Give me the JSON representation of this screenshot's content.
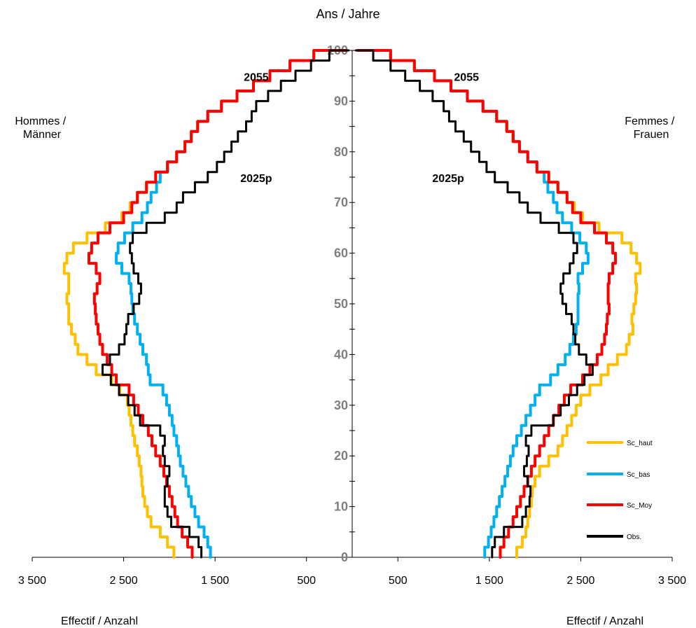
{
  "chart_data": {
    "type": "line",
    "title": "Ans / Jahre",
    "left_label": [
      "Hommes /",
      "Männer"
    ],
    "right_label": [
      "Femmes /",
      "Frauen"
    ],
    "x_label_left": "Effectif /  Anzahl",
    "x_label_right": "Effectif / Anzahl",
    "x_tick_labels": [
      "3 500",
      "2 500",
      "1 500",
      "500",
      "500",
      "1 500",
      "2 500",
      "3 500"
    ],
    "x_tick_values": [
      -3500,
      -2500,
      -1500,
      -500,
      500,
      1500,
      2500,
      3500
    ],
    "y_tick_labels": [
      "0",
      "10",
      "20",
      "30",
      "40",
      "50",
      "60",
      "70",
      "80",
      "90",
      "100"
    ],
    "y_tick_values": [
      0,
      10,
      20,
      30,
      40,
      50,
      60,
      70,
      80,
      90,
      100
    ],
    "xlim": [
      -3500,
      3500
    ],
    "ylim": [
      0,
      100
    ],
    "annotations": [
      {
        "text": "2055",
        "x": -1050,
        "y": 94
      },
      {
        "text": "2055",
        "x": 1250,
        "y": 94
      },
      {
        "text": "2025p",
        "x": -1050,
        "y": 74
      },
      {
        "text": "2025p",
        "x": 1050,
        "y": 74
      }
    ],
    "y": [
      0,
      2,
      4,
      6,
      8,
      10,
      12,
      14,
      16,
      18,
      20,
      22,
      24,
      26,
      28,
      30,
      32,
      34,
      36,
      38,
      40,
      42,
      44,
      46,
      48,
      50,
      52,
      54,
      56,
      58,
      60,
      62,
      64,
      66,
      68,
      70,
      72,
      74,
      76,
      78,
      80,
      82,
      84,
      86,
      88,
      90,
      92,
      94,
      96,
      98,
      100
    ],
    "series": [
      {
        "name": "Sc_haut",
        "color": "#ffc000",
        "male": [
          1950,
          2020,
          2100,
          2200,
          2240,
          2270,
          2290,
          2300,
          2310,
          2330,
          2350,
          2380,
          2400,
          2420,
          2440,
          2460,
          2540,
          2630,
          2800,
          2900,
          3000,
          3030,
          3070,
          3100,
          3100,
          3120,
          3100,
          3100,
          3150,
          3120,
          3050,
          2900,
          2700,
          2520,
          2430,
          2350,
          2250,
          2150,
          2020,
          1920,
          1830,
          1760,
          1690,
          1580,
          1430,
          1260,
          1080,
          900,
          680,
          420,
          60
        ],
        "female": [
          1800,
          1860,
          1900,
          1920,
          1940,
          1960,
          1970,
          2000,
          2050,
          2150,
          2250,
          2300,
          2350,
          2400,
          2450,
          2500,
          2600,
          2720,
          2800,
          2900,
          3000,
          3030,
          3070,
          3060,
          3080,
          3100,
          3110,
          3100,
          3150,
          3110,
          3050,
          2950,
          2700,
          2520,
          2430,
          2350,
          2250,
          2150,
          2020,
          1920,
          1830,
          1760,
          1690,
          1580,
          1430,
          1260,
          1080,
          900,
          680,
          420,
          60
        ]
      },
      {
        "name": "Sc_bas",
        "color": "#00b0f0",
        "male": [
          1550,
          1580,
          1620,
          1680,
          1720,
          1760,
          1790,
          1820,
          1850,
          1880,
          1900,
          1920,
          1950,
          1970,
          2000,
          2030,
          2070,
          2210,
          2230,
          2250,
          2290,
          2320,
          2350,
          2380,
          2400,
          2410,
          2420,
          2440,
          2520,
          2580,
          2560,
          2490,
          2400,
          2300,
          2240,
          2200,
          2140,
          2100,
          2020,
          1920,
          1830,
          1760,
          1690,
          1580,
          1430,
          1260,
          1080,
          900,
          680,
          420,
          60
        ],
        "female": [
          1450,
          1490,
          1520,
          1550,
          1580,
          1610,
          1640,
          1670,
          1700,
          1730,
          1760,
          1800,
          1850,
          1900,
          1950,
          2000,
          2050,
          2170,
          2250,
          2330,
          2380,
          2420,
          2450,
          2470,
          2470,
          2470,
          2480,
          2470,
          2520,
          2580,
          2560,
          2490,
          2400,
          2300,
          2240,
          2200,
          2140,
          2100,
          2020,
          1920,
          1830,
          1760,
          1690,
          1580,
          1430,
          1260,
          1080,
          900,
          680,
          420,
          60
        ]
      },
      {
        "name": "Sc_Moy",
        "color": "#ff0000",
        "male": [
          1750,
          1800,
          1860,
          1910,
          1940,
          1970,
          2000,
          2030,
          2060,
          2100,
          2150,
          2190,
          2230,
          2290,
          2340,
          2390,
          2440,
          2580,
          2630,
          2680,
          2730,
          2760,
          2780,
          2800,
          2810,
          2820,
          2790,
          2760,
          2800,
          2880,
          2850,
          2780,
          2650,
          2500,
          2410,
          2350,
          2250,
          2150,
          2020,
          1920,
          1830,
          1760,
          1690,
          1580,
          1430,
          1260,
          1080,
          900,
          680,
          420,
          60
        ],
        "female": [
          1620,
          1660,
          1710,
          1760,
          1800,
          1840,
          1880,
          1920,
          1960,
          2000,
          2050,
          2100,
          2150,
          2200,
          2260,
          2320,
          2390,
          2520,
          2600,
          2680,
          2730,
          2760,
          2780,
          2790,
          2810,
          2800,
          2800,
          2810,
          2850,
          2880,
          2850,
          2780,
          2650,
          2500,
          2410,
          2350,
          2250,
          2150,
          2020,
          1920,
          1830,
          1760,
          1690,
          1580,
          1430,
          1260,
          1080,
          900,
          680,
          420,
          60
        ]
      },
      {
        "name": "Obs.",
        "color": "#000000",
        "male": [
          1650,
          1680,
          1780,
          1980,
          2020,
          2050,
          2050,
          2020,
          2000,
          2050,
          2070,
          2050,
          2100,
          2320,
          2380,
          2450,
          2550,
          2640,
          2730,
          2650,
          2550,
          2490,
          2470,
          2450,
          2390,
          2330,
          2310,
          2340,
          2390,
          2410,
          2430,
          2400,
          2250,
          2050,
          1920,
          1850,
          1720,
          1580,
          1480,
          1400,
          1320,
          1250,
          1160,
          1100,
          1050,
          920,
          780,
          620,
          450,
          250,
          40
        ],
        "female": [
          1530,
          1560,
          1660,
          1860,
          1900,
          1940,
          1950,
          1920,
          1880,
          1910,
          1930,
          1900,
          1960,
          2200,
          2280,
          2370,
          2460,
          2540,
          2630,
          2560,
          2480,
          2440,
          2420,
          2400,
          2340,
          2300,
          2280,
          2310,
          2380,
          2420,
          2460,
          2420,
          2260,
          2060,
          1920,
          1830,
          1700,
          1560,
          1470,
          1390,
          1300,
          1220,
          1130,
          1060,
          1000,
          880,
          740,
          580,
          420,
          230,
          40
        ]
      }
    ],
    "legend": [
      {
        "name": "Sc_haut",
        "color": "#ffc000"
      },
      {
        "name": "Sc_bas",
        "color": "#00b0f0"
      },
      {
        "name": "Sc_Moy",
        "color": "#ff0000"
      },
      {
        "name": "Obs.",
        "color": "#000000"
      }
    ],
    "legend_position": "right",
    "grid": false
  }
}
